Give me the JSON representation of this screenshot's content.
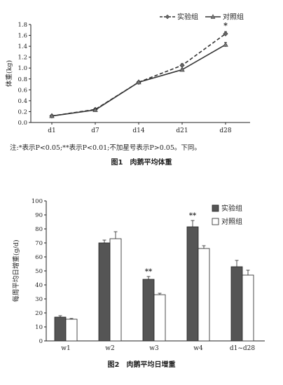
{
  "chart_data": [
    {
      "type": "line",
      "ylabel": "体重(kg)",
      "categories": [
        "d1",
        "d7",
        "d14",
        "d21",
        "d28"
      ],
      "yticks": [
        "0.0",
        "0.2",
        "0.4",
        "0.6",
        "0.8",
        "1.0",
        "1.2",
        "1.4",
        "1.6",
        "1.8"
      ],
      "ylim": [
        0,
        1.8
      ],
      "legend_position": "top-right",
      "grid": false,
      "series": [
        {
          "name": "实验组",
          "style": "dashed",
          "marker": "diamond",
          "values": [
            0.12,
            0.24,
            0.74,
            1.05,
            1.63
          ],
          "errors": [
            0.02,
            0.02,
            0.02,
            0.03,
            0.04
          ]
        },
        {
          "name": "对照组",
          "style": "solid",
          "marker": "triangle",
          "values": [
            0.12,
            0.23,
            0.74,
            0.97,
            1.43
          ],
          "errors": [
            0.02,
            0.02,
            0.02,
            0.02,
            0.04
          ]
        }
      ],
      "annotations": [
        {
          "category": "d28",
          "text": "*"
        }
      ],
      "color": "#333333"
    },
    {
      "type": "bar",
      "ylabel": "每周平均日增重(g/d)",
      "categories": [
        "w1",
        "w2",
        "w3",
        "w4",
        "d1~d28"
      ],
      "yticks": [
        "0",
        "10",
        "20",
        "30",
        "40",
        "50",
        "60",
        "70",
        "80",
        "90",
        "100"
      ],
      "ylim": [
        0,
        100
      ],
      "legend_position": "top-right",
      "grid": false,
      "series": [
        {
          "name": "实验组",
          "fill": "#555555",
          "values": [
            17,
            70,
            44,
            81.5,
            53
          ],
          "errors": [
            1,
            2,
            2,
            4.5,
            4.5
          ]
        },
        {
          "name": "对照组",
          "fill": "#ffffff",
          "values": [
            15.5,
            73,
            33,
            66,
            47
          ],
          "errors": [
            0.5,
            5,
            1,
            2,
            3.5
          ]
        }
      ],
      "annotations": [
        {
          "category": "w3",
          "text": "**"
        },
        {
          "category": "w4",
          "text": "**"
        }
      ]
    }
  ],
  "note": "注:*表示P<0.05;**表示P<0.01;不加星号表示P>0.05。下同。",
  "captions": {
    "fig1_num": "图1",
    "fig1_title": "肉鹅平均体重",
    "fig2_num": "图2",
    "fig2_title": "肉鹅平均日增重"
  }
}
